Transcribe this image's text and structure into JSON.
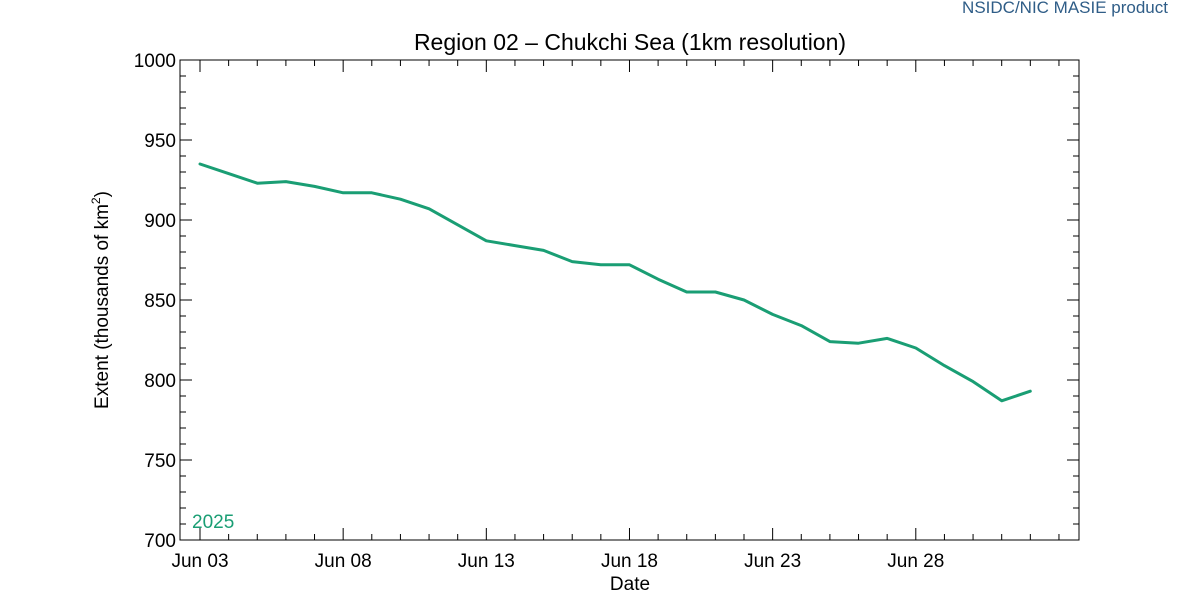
{
  "credit": "NSIDC/NIC MASIE product",
  "chart_data": {
    "type": "line",
    "title": "Region 02 – Chukchi Sea (1km resolution)",
    "xlabel": "Date",
    "ylabel": "Extent (thousands of km",
    "ylabel_sup": "2",
    "ylabel_end": ")",
    "ylim": [
      700,
      1000
    ],
    "yticks": [
      700,
      750,
      800,
      850,
      900,
      950,
      1000
    ],
    "xlim": [
      "2025-06-03",
      "2025-07-03"
    ],
    "xticks": [
      {
        "date": "2025-06-03",
        "label": "Jun 03"
      },
      {
        "date": "2025-06-08",
        "label": "Jun 08"
      },
      {
        "date": "2025-06-13",
        "label": "Jun 13"
      },
      {
        "date": "2025-06-18",
        "label": "Jun 18"
      },
      {
        "date": "2025-06-23",
        "label": "Jun 23"
      },
      {
        "date": "2025-06-28",
        "label": "Jun 28"
      }
    ],
    "grid": false,
    "series": [
      {
        "name": "2025",
        "color": "#1a9e74",
        "x": [
          "2025-06-03",
          "2025-06-04",
          "2025-06-05",
          "2025-06-06",
          "2025-06-07",
          "2025-06-08",
          "2025-06-09",
          "2025-06-10",
          "2025-06-11",
          "2025-06-12",
          "2025-06-13",
          "2025-06-14",
          "2025-06-15",
          "2025-06-16",
          "2025-06-17",
          "2025-06-18",
          "2025-06-19",
          "2025-06-20",
          "2025-06-21",
          "2025-06-22",
          "2025-06-23",
          "2025-06-24",
          "2025-06-25",
          "2025-06-26",
          "2025-06-27",
          "2025-06-28",
          "2025-06-29",
          "2025-06-30",
          "2025-07-01",
          "2025-07-02"
        ],
        "values": [
          935,
          929,
          923,
          924,
          921,
          917,
          917,
          913,
          907,
          897,
          887,
          884,
          881,
          874,
          872,
          872,
          863,
          855,
          855,
          850,
          841,
          834,
          824,
          823,
          826,
          820,
          809,
          799,
          787,
          793
        ]
      }
    ]
  }
}
